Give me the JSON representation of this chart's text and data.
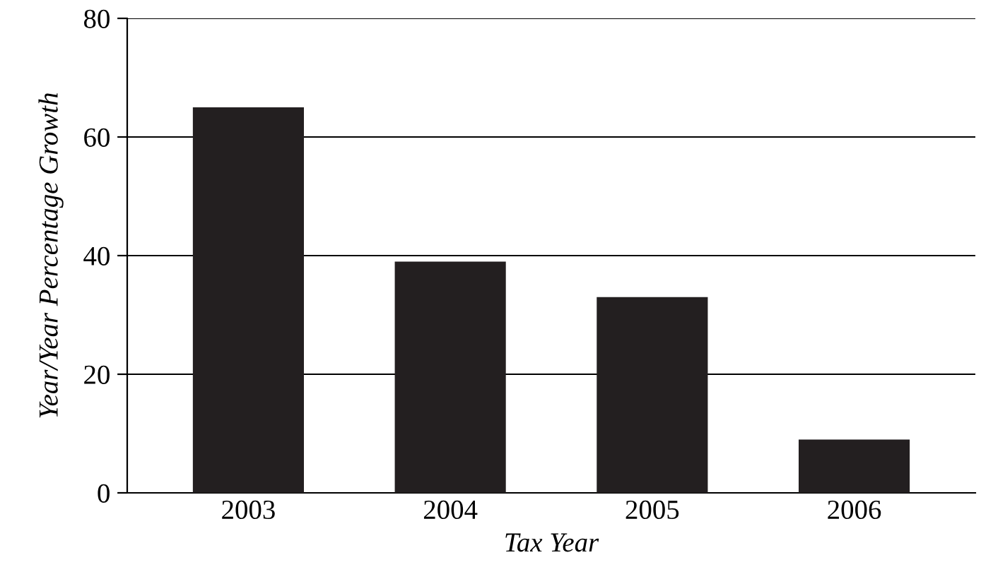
{
  "chart_data": {
    "type": "bar",
    "xlabel": "Tax Year",
    "ylabel": "Year/Year Percentage Growth",
    "categories": [
      "2003",
      "2004",
      "2005",
      "2006"
    ],
    "values": [
      65,
      39,
      33,
      9
    ],
    "color": "#231f20",
    "ylim": [
      0,
      80
    ],
    "yticks": [
      0,
      20,
      40,
      60,
      80
    ],
    "grid": "y"
  }
}
